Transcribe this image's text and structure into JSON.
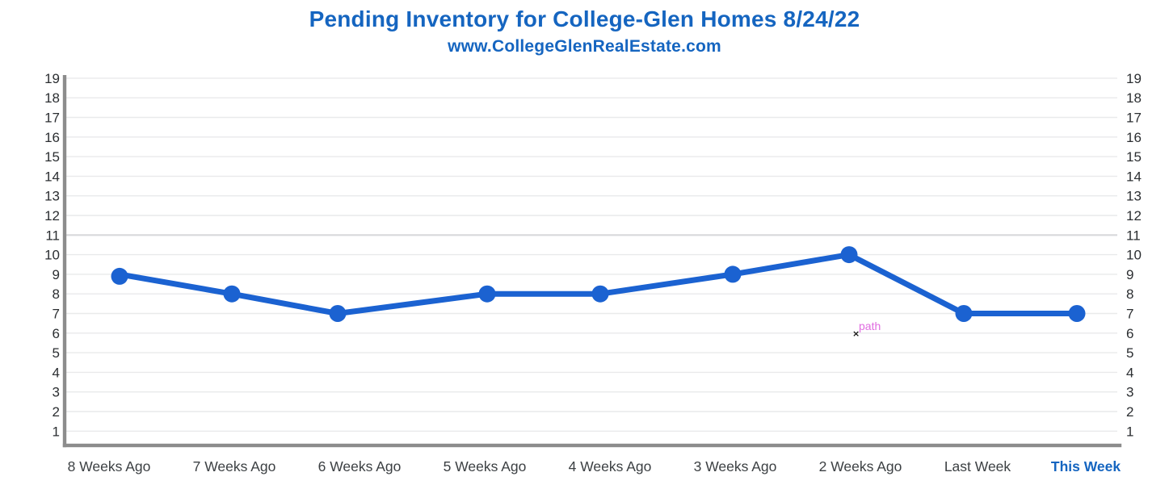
{
  "header": {
    "title": "Pending Inventory for College-Glen Homes 8/24/22",
    "subtitle": "www.CollegeGlenRealEstate.com",
    "title_color": "#1565C0"
  },
  "chart_data": {
    "type": "line",
    "title": "Pending Inventory for College-Glen Homes 8/24/22",
    "subtitle": "www.CollegeGlenRealEstate.com",
    "categories": [
      "8 Weeks Ago",
      "7 Weeks Ago",
      "6 Weeks Ago",
      "5 Weeks Ago",
      "4 Weeks Ago",
      "3 Weeks Ago",
      "2 Weeks Ago",
      "Last Week",
      "This Week"
    ],
    "values": [
      9,
      8,
      7,
      8,
      8,
      9,
      10,
      7,
      7
    ],
    "series_name": "Pending Inventory",
    "ylim": [
      1,
      19
    ],
    "y_ticks": [
      1,
      2,
      3,
      4,
      5,
      6,
      7,
      8,
      9,
      10,
      11,
      12,
      13,
      14,
      15,
      16,
      17,
      18,
      19
    ],
    "y_axis_sides": [
      "left",
      "right"
    ],
    "grid": "horizontal",
    "emphasized_gridline": 11,
    "legend": false,
    "line_color": "#1B62D1",
    "marker": "circle",
    "grid_color": "#E9EAEB",
    "emphasized_grid_color": "#D8D9DB",
    "axis_color": "#8C8C8C",
    "y_label_color": "#2B2E31",
    "x_label_color": "#3C4043",
    "highlighted_category": "This Week",
    "highlight_color": "#1565C0"
  },
  "tooltip": {
    "label": "path",
    "color": "#E06CE0",
    "cursor_glyph": "×",
    "at_category": "2 Weeks Ago",
    "at_value": 6
  }
}
